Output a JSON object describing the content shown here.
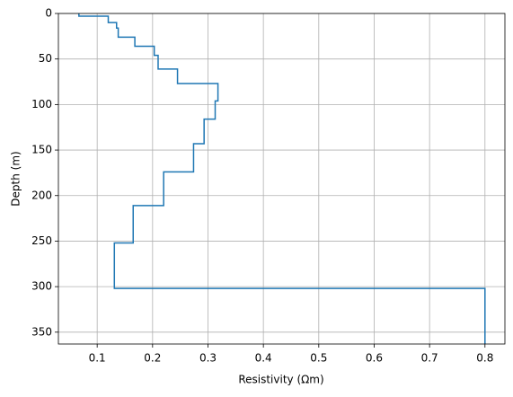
{
  "chart_data": {
    "type": "line",
    "xlabel": "Resistivity (Ωm)",
    "ylabel": "Depth (m)",
    "series": [
      {
        "color": "#1f77b4",
        "x": [
          0.067,
          0.067,
          0.12,
          0.12,
          0.135,
          0.135,
          0.138,
          0.138,
          0.168,
          0.168,
          0.203,
          0.203,
          0.21,
          0.21,
          0.245,
          0.245,
          0.318,
          0.318,
          0.313,
          0.313,
          0.293,
          0.293,
          0.274,
          0.274,
          0.22,
          0.22,
          0.165,
          0.165,
          0.131,
          0.131,
          0.8,
          0.8
        ],
        "values": [
          0,
          3,
          3,
          10,
          10,
          16,
          16,
          26,
          26,
          36,
          36,
          46,
          46,
          61,
          61,
          77,
          77,
          96,
          96,
          116,
          116,
          143,
          143,
          174,
          174,
          211,
          211,
          252,
          252,
          302,
          302,
          363
        ]
      }
    ],
    "xlim": [
      0.03,
      0.836
    ],
    "xticks": [
      0.1,
      0.2,
      0.3,
      0.4,
      0.5,
      0.6,
      0.7,
      0.8
    ],
    "ylim": [
      363,
      0
    ],
    "yticks": [
      0,
      50,
      100,
      150,
      200,
      250,
      300,
      350
    ],
    "grid": true
  }
}
